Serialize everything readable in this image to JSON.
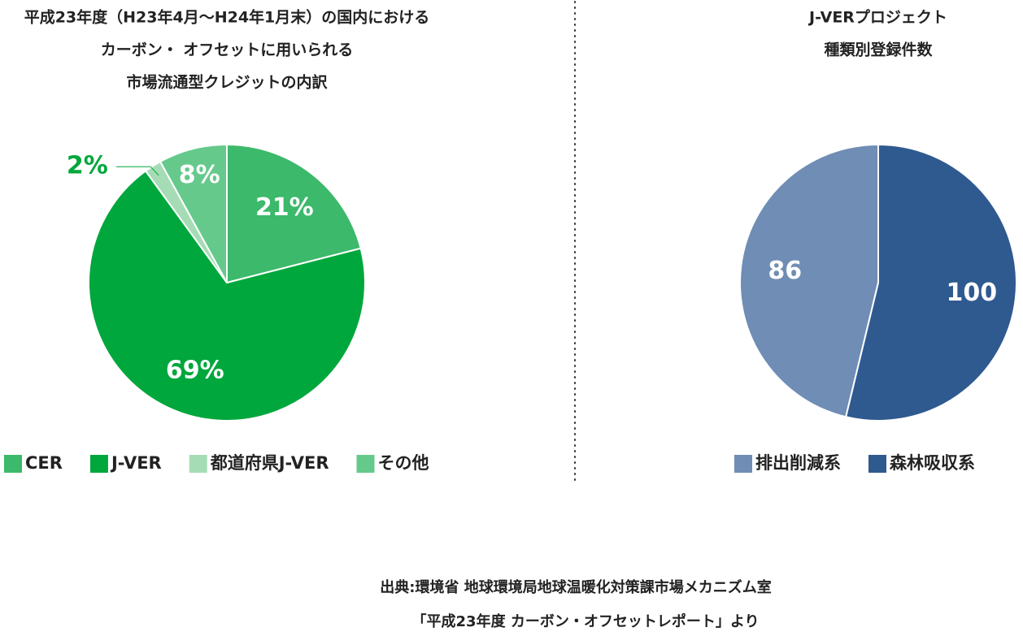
{
  "chart_data": [
    {
      "type": "pie",
      "title": [
        "平成23年度（H23年4月～H24年1月末）の国内における",
        "カーボン・ オフセットに用いられる",
        "市場流通型クレジットの内訳"
      ],
      "categories": [
        "CER",
        "J-VER",
        "都道府県J-VER",
        "その他"
      ],
      "values": [
        21,
        69,
        2,
        8
      ],
      "value_labels": [
        "21%",
        "69%",
        "2%",
        "8%"
      ],
      "colors": [
        "#3cb96a",
        "#00a73c",
        "#a6dcb5",
        "#66c98c"
      ],
      "clockwise": true
    },
    {
      "type": "pie",
      "title": [
        "J-VERプロジェクト",
        "種類別登録件数"
      ],
      "categories": [
        "排出削減系",
        "森林吸収系"
      ],
      "values": [
        86,
        100
      ],
      "colors": [
        "#6f8db5",
        "#2f5a8f"
      ],
      "clockwise": false
    }
  ],
  "source": [
    "出典:環境省 地球環境局地球温暖化対策課市場メカニズム室",
    "「平成23年度 カーボン・オフセットレポート」より"
  ]
}
